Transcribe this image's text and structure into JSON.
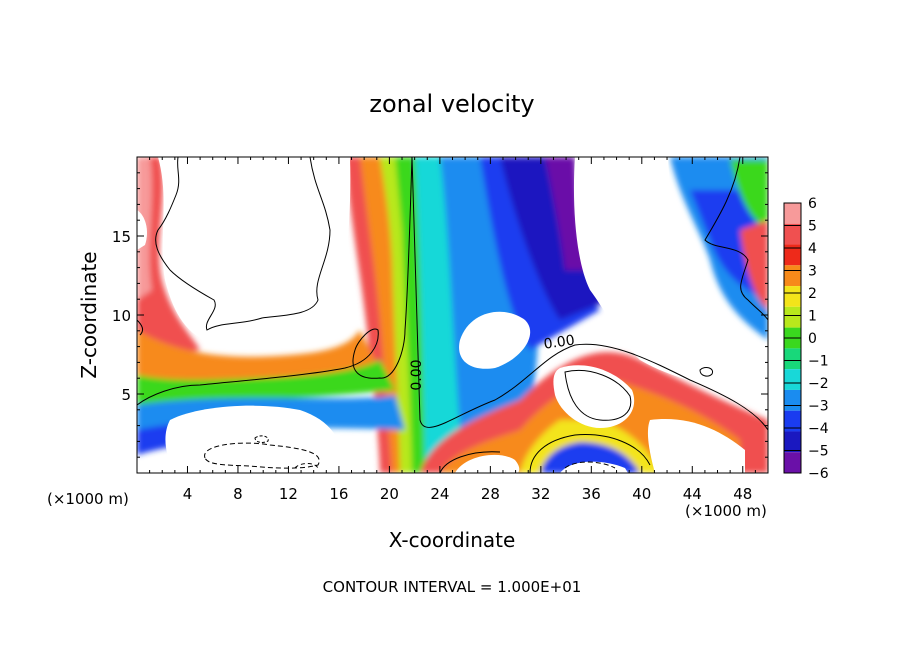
{
  "chart_data": {
    "type": "heatmap",
    "title": "zonal velocity",
    "xlabel": "X-coordinate",
    "ylabel": "Z-coordinate",
    "x_unit": "(×1000 m)",
    "y_unit": "(×1000 m)",
    "xlim": [
      0,
      50
    ],
    "ylim": [
      0,
      20
    ],
    "x_ticks": [
      4,
      8,
      12,
      16,
      20,
      24,
      28,
      32,
      36,
      40,
      44,
      48
    ],
    "y_ticks": [
      5,
      10,
      15
    ],
    "colorbar": {
      "levels": [
        6,
        5,
        4,
        3,
        2,
        1,
        0,
        -1,
        -2,
        -3,
        -4,
        -5,
        -6
      ],
      "colors": [
        "#f79a9a",
        "#f05050",
        "#ee2a1a",
        "#f78a1a",
        "#f3e41a",
        "#b8e81c",
        "#3ad81e",
        "#18d87a",
        "#18d8d8",
        "#1a8cf0",
        "#1a3cf0",
        "#1a18c0",
        "#6a10a8"
      ]
    },
    "contour_labels": [
      {
        "text": "0.00",
        "x": 22.5,
        "y": 6.2,
        "rotate": -90
      },
      {
        "text": "0.00",
        "x": 33.5,
        "y": 8.0,
        "rotate": -8
      }
    ],
    "footer": "CONTOUR INTERVAL = 1.000E+01"
  }
}
